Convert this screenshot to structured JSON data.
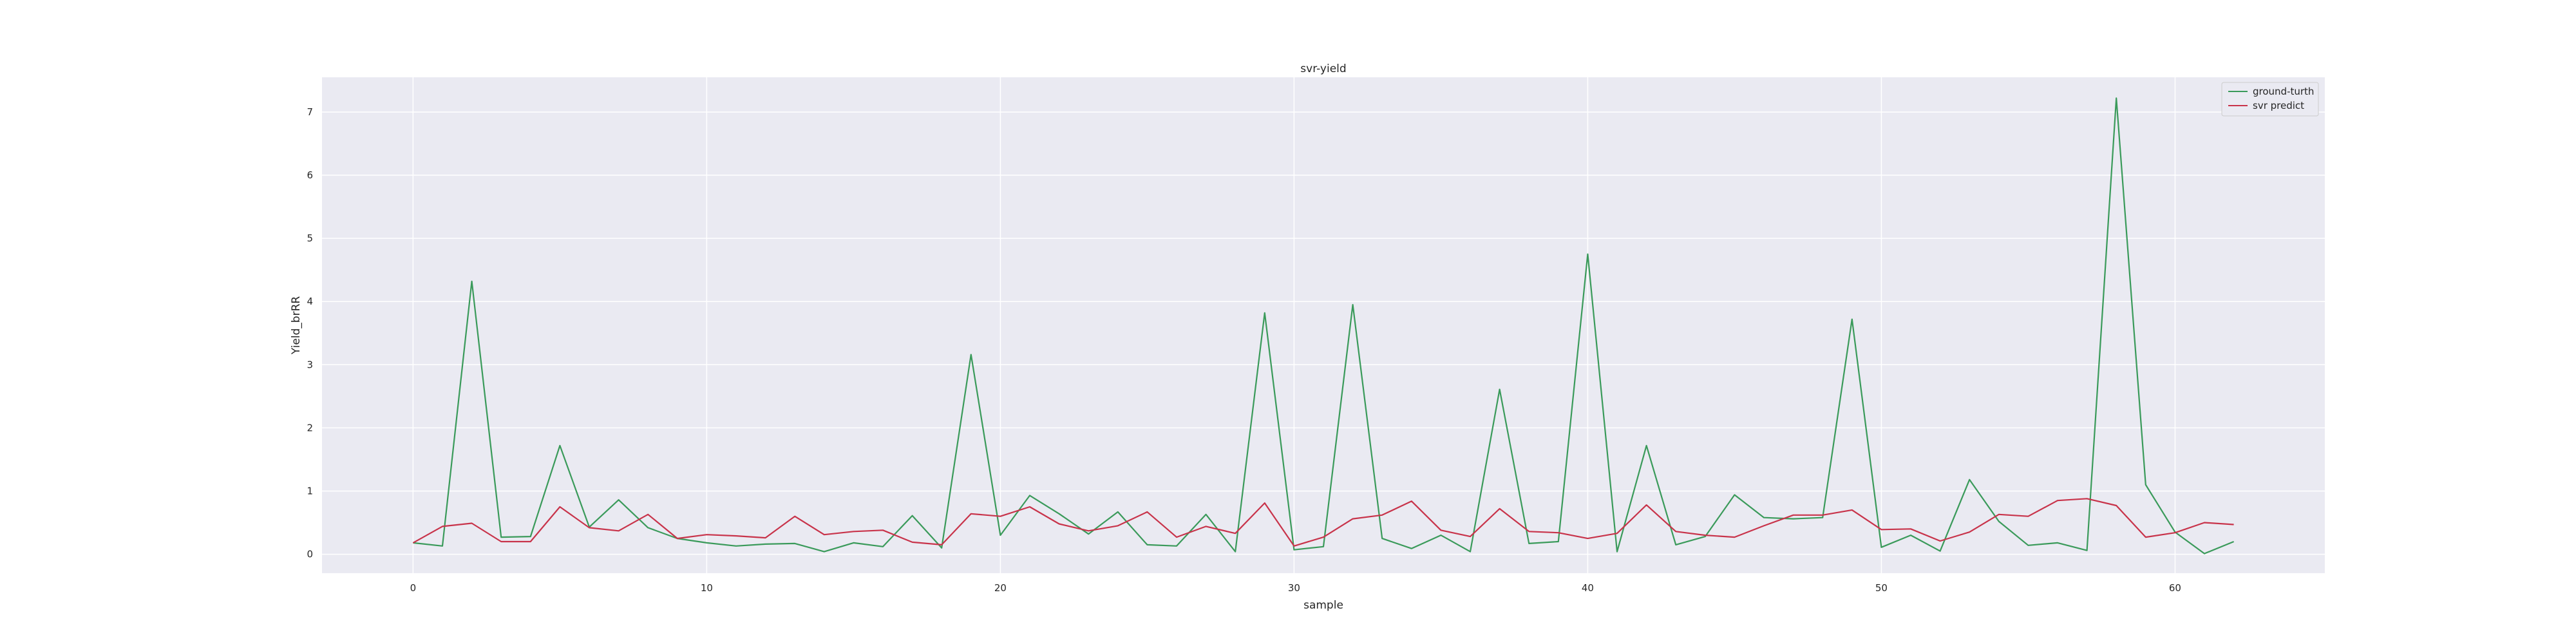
{
  "chart_data": {
    "type": "line",
    "title": "svr-yield",
    "xlabel": "sample",
    "ylabel": "Yield_brRR",
    "xlim": [
      -3.1,
      65.1
    ],
    "ylim": [
      -0.3,
      7.55
    ],
    "xticks": [
      0,
      10,
      20,
      30,
      40,
      50,
      60
    ],
    "yticks": [
      0,
      1,
      2,
      3,
      4,
      5,
      6,
      7
    ],
    "grid": true,
    "legend": {
      "placement": "top-right",
      "entries": [
        "ground-turth",
        "svr predict"
      ]
    },
    "colors": {
      "background": "#eaeaf2",
      "grid": "#ffffff",
      "ground_truth": "#3a9a5a",
      "predict": "#c8334a"
    },
    "series": [
      {
        "name": "ground-turth",
        "color": "#3a9a5a",
        "x": [
          0,
          1,
          2,
          3,
          4,
          5,
          6,
          7,
          8,
          9,
          10,
          11,
          12,
          13,
          14,
          15,
          16,
          17,
          18,
          19,
          20,
          21,
          22,
          23,
          24,
          25,
          26,
          27,
          28,
          29,
          30,
          31,
          32,
          33,
          34,
          35,
          36,
          37,
          38,
          39,
          40,
          41,
          42,
          43,
          44,
          45,
          46,
          47,
          48,
          49,
          50,
          51,
          52,
          53,
          54,
          55,
          56,
          57,
          58,
          59,
          60,
          61,
          62
        ],
        "values": [
          0.18,
          0.13,
          4.32,
          0.27,
          0.28,
          1.72,
          0.43,
          0.86,
          0.42,
          0.25,
          0.18,
          0.13,
          0.16,
          0.17,
          0.04,
          0.18,
          0.12,
          0.61,
          0.1,
          3.16,
          0.3,
          0.93,
          0.64,
          0.32,
          0.67,
          0.15,
          0.13,
          0.63,
          0.04,
          3.82,
          0.07,
          0.12,
          3.95,
          0.25,
          0.09,
          0.3,
          0.04,
          2.61,
          0.17,
          0.2,
          4.75,
          0.04,
          1.72,
          0.15,
          0.28,
          0.94,
          0.58,
          0.56,
          0.58,
          3.72,
          0.11,
          0.3,
          0.05,
          1.18,
          0.52,
          0.14,
          0.18,
          0.06,
          7.22,
          1.1,
          0.35,
          0.01,
          0.2
        ]
      },
      {
        "name": "svr predict",
        "color": "#c8334a",
        "x": [
          0,
          1,
          2,
          3,
          4,
          5,
          6,
          7,
          8,
          9,
          10,
          11,
          12,
          13,
          14,
          15,
          16,
          17,
          18,
          19,
          20,
          21,
          22,
          23,
          24,
          25,
          26,
          27,
          28,
          29,
          30,
          31,
          32,
          33,
          34,
          35,
          36,
          37,
          38,
          39,
          40,
          41,
          42,
          43,
          44,
          45,
          46,
          47,
          48,
          49,
          50,
          51,
          52,
          53,
          54,
          55,
          56,
          57,
          58,
          59,
          60,
          61,
          62
        ],
        "values": [
          0.18,
          0.44,
          0.49,
          0.2,
          0.2,
          0.75,
          0.42,
          0.37,
          0.63,
          0.25,
          0.31,
          0.29,
          0.26,
          0.6,
          0.31,
          0.36,
          0.38,
          0.19,
          0.15,
          0.64,
          0.6,
          0.75,
          0.48,
          0.37,
          0.45,
          0.67,
          0.27,
          0.44,
          0.33,
          0.81,
          0.13,
          0.27,
          0.56,
          0.62,
          0.84,
          0.38,
          0.28,
          0.72,
          0.36,
          0.34,
          0.25,
          0.33,
          0.78,
          0.36,
          0.3,
          0.27,
          0.45,
          0.62,
          0.62,
          0.7,
          0.39,
          0.4,
          0.21,
          0.35,
          0.63,
          0.6,
          0.85,
          0.88,
          0.77,
          0.27,
          0.34,
          0.5,
          0.47
        ]
      }
    ]
  }
}
